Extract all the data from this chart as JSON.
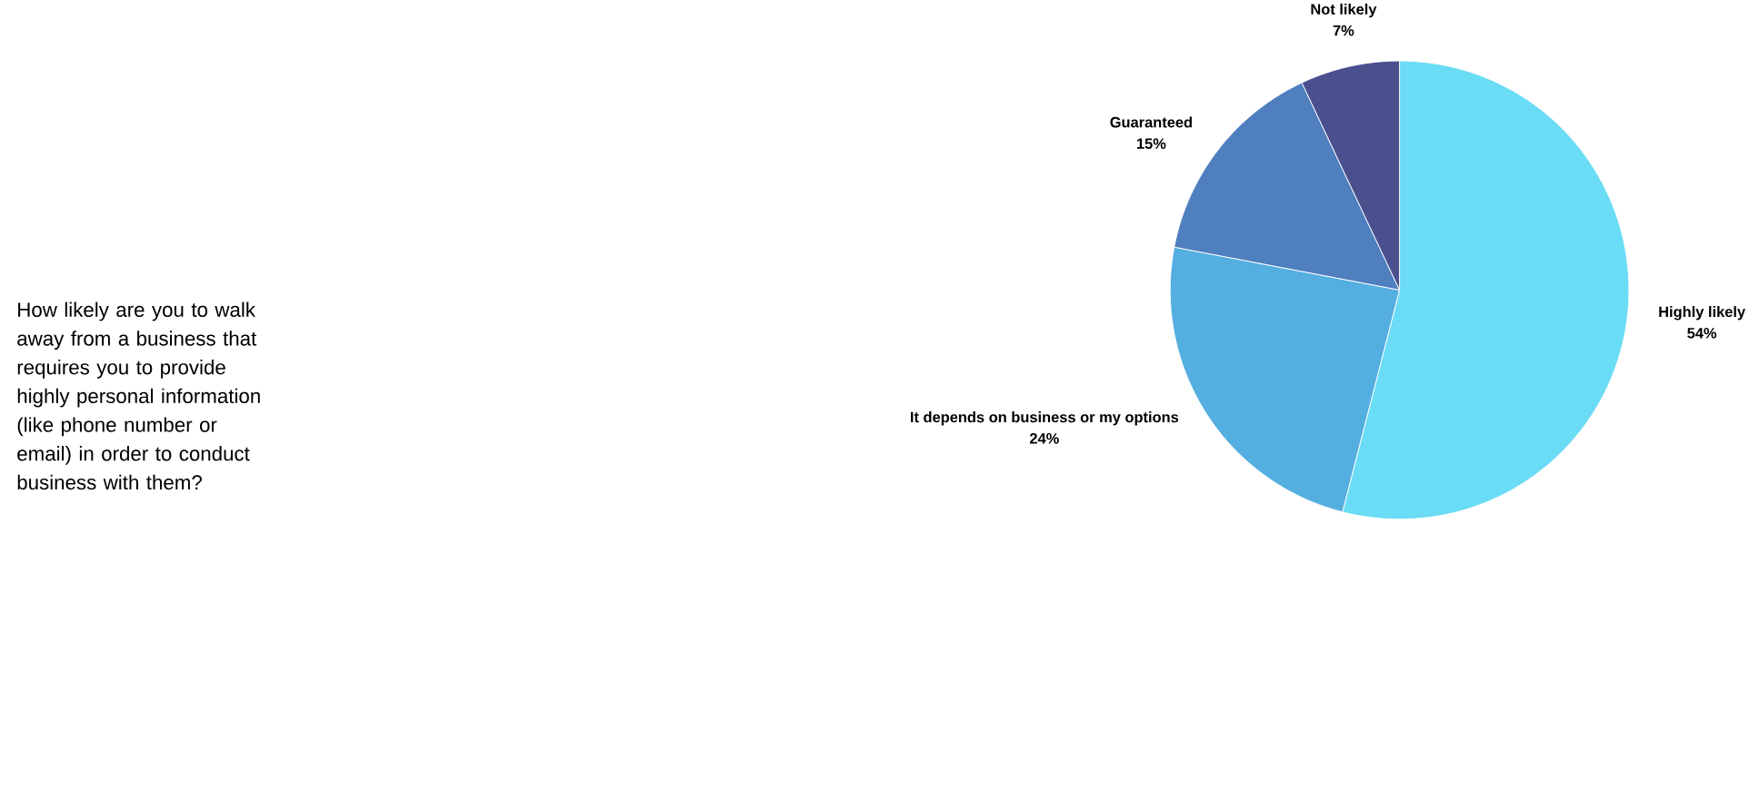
{
  "chart_data": {
    "type": "pie",
    "title": "How likely are you to walk away from a business that requires you to provide highly personal information (like phone number or email) in order to conduct business with them?",
    "categories": [
      "Highly likely",
      "It depends on business or my options",
      "Guaranteed",
      "Not likely"
    ],
    "values": [
      54,
      24,
      15,
      7
    ],
    "value_labels": [
      "54%",
      "24%",
      "15%",
      "7%"
    ],
    "colors": [
      "#6adcf5",
      "#55aee0",
      "#4f7fbf",
      "#4a4f8e"
    ]
  }
}
